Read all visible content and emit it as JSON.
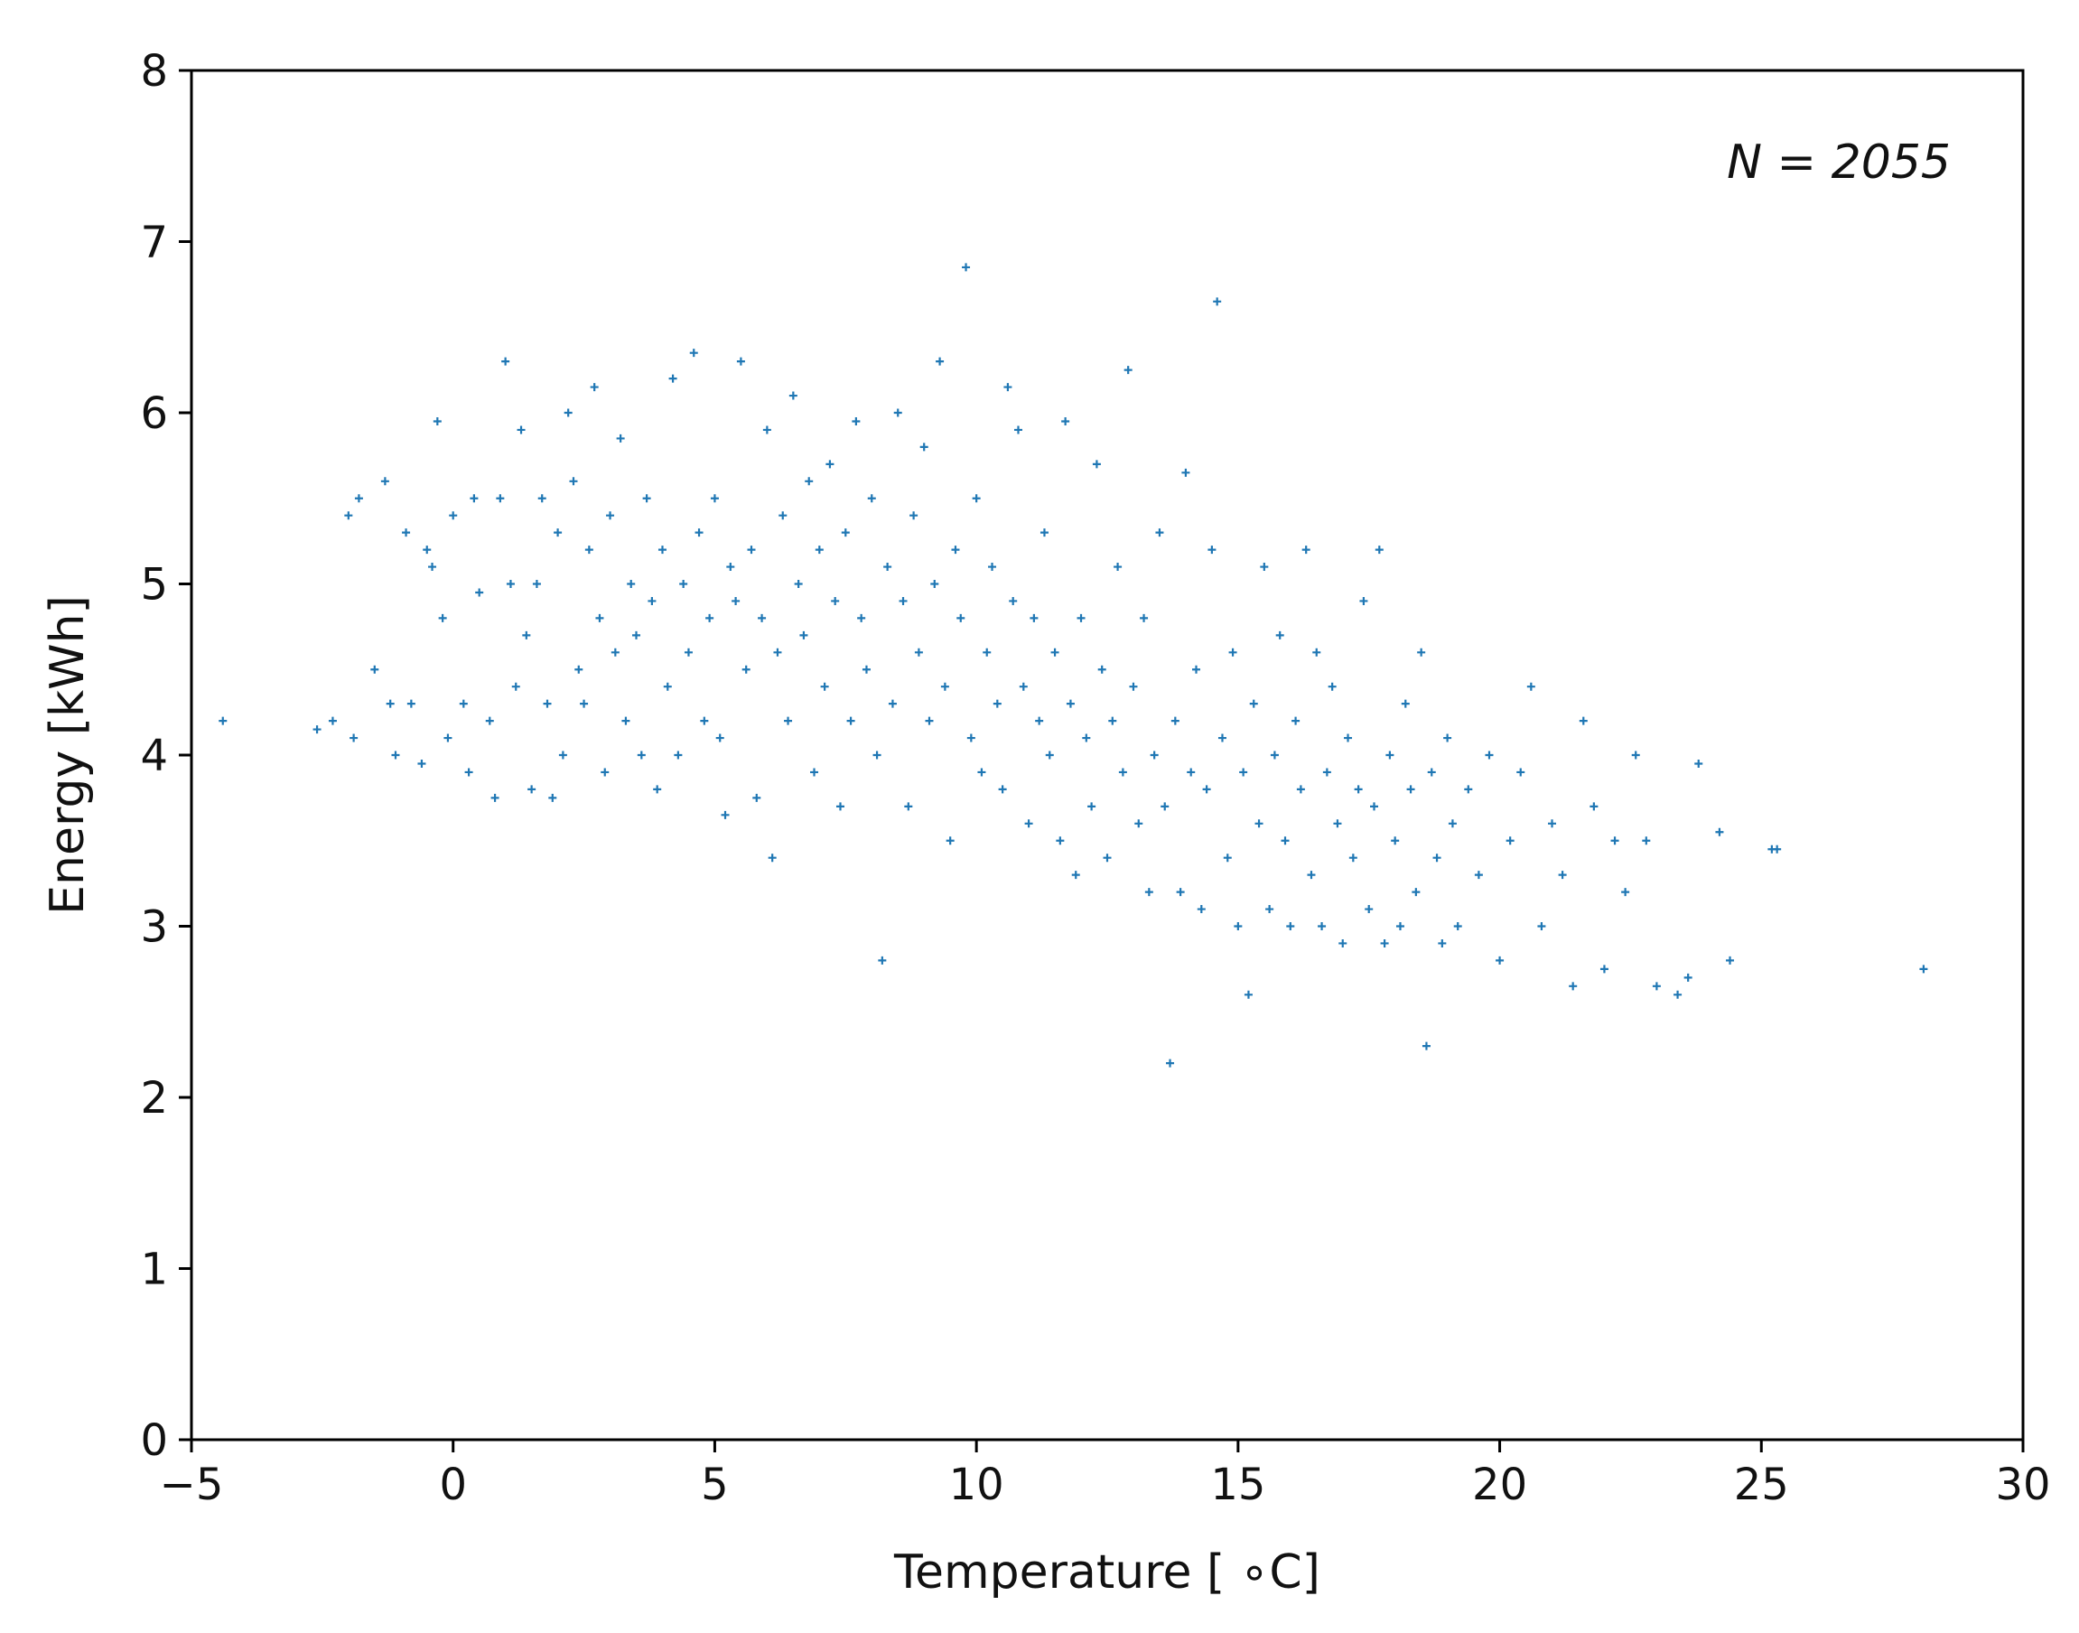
{
  "chart_data": {
    "type": "scatter",
    "title": "",
    "xlabel": "Temperature [$^\\circ$C]",
    "xlabel_display": "Temperature [ ∘C]",
    "ylabel": "Energy [kWh]",
    "xlim": [
      -5,
      30
    ],
    "ylim": [
      0,
      8
    ],
    "xticks": [
      -5,
      0,
      5,
      10,
      15,
      20,
      25,
      30
    ],
    "xtick_labels": [
      "−5",
      "0",
      "5",
      "10",
      "15",
      "20",
      "25",
      "30"
    ],
    "yticks": [
      0,
      1,
      2,
      3,
      4,
      5,
      6,
      7,
      8
    ],
    "ytick_labels": [
      "0",
      "1",
      "2",
      "3",
      "4",
      "5",
      "6",
      "7",
      "8"
    ],
    "annotation": "N = 2055",
    "marker": "+",
    "color": "#1f77b4",
    "grid": false,
    "series": [
      {
        "points": [
          [
            -4.4,
            4.2
          ],
          [
            -2.6,
            4.15
          ],
          [
            -2.3,
            4.2
          ],
          [
            -2.0,
            5.4
          ],
          [
            -1.9,
            4.1
          ],
          [
            -1.8,
            5.5
          ],
          [
            -1.5,
            4.5
          ],
          [
            -1.3,
            5.6
          ],
          [
            -1.2,
            4.3
          ],
          [
            -1.1,
            4.0
          ],
          [
            -0.9,
            5.3
          ],
          [
            -0.8,
            4.3
          ],
          [
            -0.6,
            3.95
          ],
          [
            -0.5,
            5.2
          ],
          [
            -0.4,
            5.1
          ],
          [
            -0.3,
            5.95
          ],
          [
            -0.2,
            4.8
          ],
          [
            -0.1,
            4.1
          ],
          [
            0.0,
            5.4
          ],
          [
            0.2,
            4.3
          ],
          [
            0.3,
            3.9
          ],
          [
            0.4,
            5.5
          ],
          [
            0.5,
            4.95
          ],
          [
            0.7,
            4.2
          ],
          [
            0.8,
            3.75
          ],
          [
            0.9,
            5.5
          ],
          [
            1.0,
            6.3
          ],
          [
            1.1,
            5.0
          ],
          [
            1.2,
            4.4
          ],
          [
            1.3,
            5.9
          ],
          [
            1.4,
            4.7
          ],
          [
            1.5,
            3.8
          ],
          [
            1.6,
            5.0
          ],
          [
            1.7,
            5.5
          ],
          [
            1.8,
            4.3
          ],
          [
            1.9,
            3.75
          ],
          [
            2.0,
            5.3
          ],
          [
            2.1,
            4.0
          ],
          [
            2.2,
            6.0
          ],
          [
            2.3,
            5.6
          ],
          [
            2.4,
            4.5
          ],
          [
            2.5,
            4.3
          ],
          [
            2.6,
            5.2
          ],
          [
            2.7,
            6.15
          ],
          [
            2.8,
            4.8
          ],
          [
            2.9,
            3.9
          ],
          [
            3.0,
            5.4
          ],
          [
            3.1,
            4.6
          ],
          [
            3.2,
            5.85
          ],
          [
            3.3,
            4.2
          ],
          [
            3.4,
            5.0
          ],
          [
            3.5,
            4.7
          ],
          [
            3.6,
            4.0
          ],
          [
            3.7,
            5.5
          ],
          [
            3.8,
            4.9
          ],
          [
            3.9,
            3.8
          ],
          [
            4.0,
            5.2
          ],
          [
            4.1,
            4.4
          ],
          [
            4.2,
            6.2
          ],
          [
            4.3,
            4.0
          ],
          [
            4.4,
            5.0
          ],
          [
            4.5,
            4.6
          ],
          [
            4.6,
            6.35
          ],
          [
            4.7,
            5.3
          ],
          [
            4.8,
            4.2
          ],
          [
            4.9,
            4.8
          ],
          [
            5.0,
            5.5
          ],
          [
            5.1,
            4.1
          ],
          [
            5.2,
            3.65
          ],
          [
            5.3,
            5.1
          ],
          [
            5.4,
            4.9
          ],
          [
            5.5,
            6.3
          ],
          [
            5.6,
            4.5
          ],
          [
            5.7,
            5.2
          ],
          [
            5.8,
            3.75
          ],
          [
            5.9,
            4.8
          ],
          [
            6.0,
            5.9
          ],
          [
            6.1,
            3.4
          ],
          [
            6.2,
            4.6
          ],
          [
            6.3,
            5.4
          ],
          [
            6.4,
            4.2
          ],
          [
            6.5,
            6.1
          ],
          [
            6.6,
            5.0
          ],
          [
            6.7,
            4.7
          ],
          [
            6.8,
            5.6
          ],
          [
            6.9,
            3.9
          ],
          [
            7.0,
            5.2
          ],
          [
            7.1,
            4.4
          ],
          [
            7.2,
            5.7
          ],
          [
            7.3,
            4.9
          ],
          [
            7.4,
            3.7
          ],
          [
            7.5,
            5.3
          ],
          [
            7.6,
            4.2
          ],
          [
            7.7,
            5.95
          ],
          [
            7.8,
            4.8
          ],
          [
            7.9,
            4.5
          ],
          [
            8.0,
            5.5
          ],
          [
            8.1,
            4.0
          ],
          [
            8.2,
            2.8
          ],
          [
            8.3,
            5.1
          ],
          [
            8.4,
            4.3
          ],
          [
            8.5,
            6.0
          ],
          [
            8.6,
            4.9
          ],
          [
            8.7,
            3.7
          ],
          [
            8.8,
            5.4
          ],
          [
            8.9,
            4.6
          ],
          [
            9.0,
            5.8
          ],
          [
            9.1,
            4.2
          ],
          [
            9.2,
            5.0
          ],
          [
            9.3,
            6.3
          ],
          [
            9.4,
            4.4
          ],
          [
            9.5,
            3.5
          ],
          [
            9.6,
            5.2
          ],
          [
            9.7,
            4.8
          ],
          [
            9.8,
            6.85
          ],
          [
            9.9,
            4.1
          ],
          [
            10.0,
            5.5
          ],
          [
            10.1,
            3.9
          ],
          [
            10.2,
            4.6
          ],
          [
            10.3,
            5.1
          ],
          [
            10.4,
            4.3
          ],
          [
            10.5,
            3.8
          ],
          [
            10.6,
            6.15
          ],
          [
            10.7,
            4.9
          ],
          [
            10.8,
            5.9
          ],
          [
            10.9,
            4.4
          ],
          [
            11.0,
            3.6
          ],
          [
            11.1,
            4.8
          ],
          [
            11.2,
            4.2
          ],
          [
            11.3,
            5.3
          ],
          [
            11.4,
            4.0
          ],
          [
            11.5,
            4.6
          ],
          [
            11.6,
            3.5
          ],
          [
            11.7,
            5.95
          ],
          [
            11.8,
            4.3
          ],
          [
            11.9,
            3.3
          ],
          [
            12.0,
            4.8
          ],
          [
            12.1,
            4.1
          ],
          [
            12.2,
            3.7
          ],
          [
            12.3,
            5.7
          ],
          [
            12.4,
            4.5
          ],
          [
            12.5,
            3.4
          ],
          [
            12.6,
            4.2
          ],
          [
            12.7,
            5.1
          ],
          [
            12.8,
            3.9
          ],
          [
            12.9,
            6.25
          ],
          [
            13.0,
            4.4
          ],
          [
            13.1,
            3.6
          ],
          [
            13.2,
            4.8
          ],
          [
            13.3,
            3.2
          ],
          [
            13.4,
            4.0
          ],
          [
            13.5,
            5.3
          ],
          [
            13.6,
            3.7
          ],
          [
            13.7,
            2.2
          ],
          [
            13.8,
            4.2
          ],
          [
            13.9,
            3.2
          ],
          [
            14.0,
            5.65
          ],
          [
            14.1,
            3.9
          ],
          [
            14.2,
            4.5
          ],
          [
            14.3,
            3.1
          ],
          [
            14.4,
            3.8
          ],
          [
            14.5,
            5.2
          ],
          [
            14.6,
            6.65
          ],
          [
            14.7,
            4.1
          ],
          [
            14.8,
            3.4
          ],
          [
            14.9,
            4.6
          ],
          [
            15.0,
            3.0
          ],
          [
            15.1,
            3.9
          ],
          [
            15.2,
            2.6
          ],
          [
            15.3,
            4.3
          ],
          [
            15.4,
            3.6
          ],
          [
            15.5,
            5.1
          ],
          [
            15.6,
            3.1
          ],
          [
            15.7,
            4.0
          ],
          [
            15.8,
            4.7
          ],
          [
            15.9,
            3.5
          ],
          [
            16.0,
            3.0
          ],
          [
            16.1,
            4.2
          ],
          [
            16.2,
            3.8
          ],
          [
            16.3,
            5.2
          ],
          [
            16.4,
            3.3
          ],
          [
            16.5,
            4.6
          ],
          [
            16.6,
            3.0
          ],
          [
            16.7,
            3.9
          ],
          [
            16.8,
            4.4
          ],
          [
            16.9,
            3.6
          ],
          [
            17.0,
            2.9
          ],
          [
            17.1,
            4.1
          ],
          [
            17.2,
            3.4
          ],
          [
            17.3,
            3.8
          ],
          [
            17.4,
            4.9
          ],
          [
            17.5,
            3.1
          ],
          [
            17.6,
            3.7
          ],
          [
            17.7,
            5.2
          ],
          [
            17.8,
            2.9
          ],
          [
            17.9,
            4.0
          ],
          [
            18.0,
            3.5
          ],
          [
            18.1,
            3.0
          ],
          [
            18.2,
            4.3
          ],
          [
            18.3,
            3.8
          ],
          [
            18.4,
            3.2
          ],
          [
            18.5,
            4.6
          ],
          [
            18.6,
            2.3
          ],
          [
            18.7,
            3.9
          ],
          [
            18.8,
            3.4
          ],
          [
            18.9,
            2.9
          ],
          [
            19.0,
            4.1
          ],
          [
            19.1,
            3.6
          ],
          [
            19.2,
            3.0
          ],
          [
            19.4,
            3.8
          ],
          [
            19.6,
            3.3
          ],
          [
            19.8,
            4.0
          ],
          [
            20.0,
            2.8
          ],
          [
            20.2,
            3.5
          ],
          [
            20.4,
            3.9
          ],
          [
            20.6,
            4.4
          ],
          [
            20.8,
            3.0
          ],
          [
            21.0,
            3.6
          ],
          [
            21.2,
            3.3
          ],
          [
            21.4,
            2.65
          ],
          [
            21.6,
            4.2
          ],
          [
            21.8,
            3.7
          ],
          [
            22.0,
            2.75
          ],
          [
            22.2,
            3.5
          ],
          [
            22.4,
            3.2
          ],
          [
            22.6,
            4.0
          ],
          [
            22.8,
            3.5
          ],
          [
            23.0,
            2.65
          ],
          [
            23.4,
            2.6
          ],
          [
            23.6,
            2.7
          ],
          [
            23.8,
            3.95
          ],
          [
            24.2,
            3.55
          ],
          [
            24.4,
            2.8
          ],
          [
            25.2,
            3.45
          ],
          [
            25.3,
            3.45
          ],
          [
            28.1,
            2.75
          ]
        ]
      }
    ]
  }
}
